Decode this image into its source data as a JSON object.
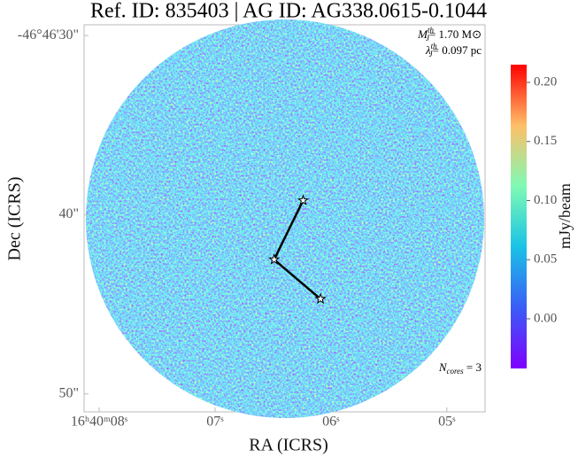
{
  "chart_data": {
    "type": "image",
    "title": "Ref. ID: 835403 | AG ID: AG338.0615-0.1044",
    "xlabel": "RA (ICRS)",
    "ylabel": "Dec (ICRS)",
    "xlim": [
      8.13,
      4.67
    ],
    "xticks": [
      {
        "value": 8,
        "label": "16ʰ40ᵐ08ˢ"
      },
      {
        "value": 7,
        "label": "07ˢ"
      },
      {
        "value": 6,
        "label": "06ˢ"
      },
      {
        "value": 5,
        "label": "05ˢ"
      }
    ],
    "ylim": [
      51.0,
      29.4
    ],
    "yticks": [
      {
        "value": 30,
        "label": "-46°46'30\""
      },
      {
        "value": 40,
        "label": "40\""
      },
      {
        "value": 50,
        "label": "50\""
      }
    ],
    "cores": {
      "x": [
        6.24,
        6.49,
        6.09
      ],
      "y": [
        39.2,
        42.5,
        44.7
      ],
      "color": "#000000"
    },
    "annotations": [
      {
        "symbol": "M",
        "sub": "J",
        "sup": "th",
        "text": "= 1.70 M⊙"
      },
      {
        "symbol": "λ",
        "sub": "J",
        "sup": "th",
        "text": "= 0.097 pc"
      },
      {
        "symbol": "N",
        "sub": "cores",
        "text": " = 3"
      }
    ],
    "colorbar": {
      "label": "mJy/beam",
      "colormap": "rainbow",
      "lim": [
        -0.042,
        0.215
      ],
      "ticks": [
        {
          "value": 0,
          "label": "0.00"
        },
        {
          "value": 0.05,
          "label": "0.05"
        },
        {
          "value": 0.1,
          "label": "0.10"
        },
        {
          "value": 0.15,
          "label": "0.15"
        },
        {
          "value": 0.2,
          "label": "0.20"
        }
      ]
    }
  }
}
